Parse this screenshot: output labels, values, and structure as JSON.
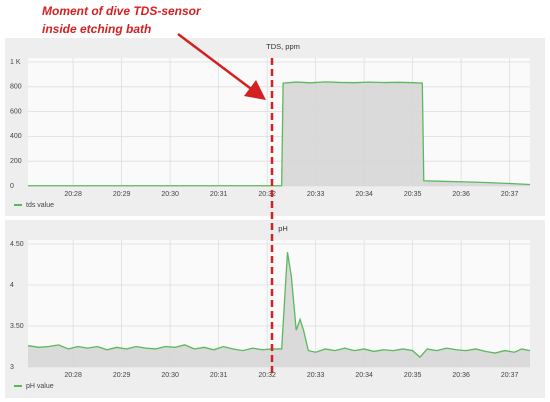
{
  "chart_data": [
    {
      "type": "line",
      "title": "TDS, ppm",
      "annotation": [
        "Moment of dive TDS-sensor",
        "inside etching bath"
      ],
      "series": [
        {
          "name": "tds value",
          "color": "#5cb85c",
          "x": [
            27.07,
            32.3,
            32.33,
            32.6,
            32.9,
            33.2,
            33.5,
            33.8,
            34.1,
            34.4,
            34.7,
            35.0,
            35.2,
            35.23,
            35.6,
            36.0,
            36.5,
            37.0,
            37.42
          ],
          "values": [
            2,
            2,
            830,
            838,
            832,
            840,
            835,
            833,
            838,
            834,
            836,
            833,
            830,
            42,
            38,
            34,
            28,
            20,
            12
          ]
        }
      ],
      "xlim": [
        27.07,
        37.42
      ],
      "xticks": [
        {
          "value": 28,
          "label": "20:28"
        },
        {
          "value": 29,
          "label": "20:29"
        },
        {
          "value": 30,
          "label": "20:30"
        },
        {
          "value": 31,
          "label": "20:31"
        },
        {
          "value": 32,
          "label": "20:32"
        },
        {
          "value": 33,
          "label": "20:33"
        },
        {
          "value": 34,
          "label": "20:34"
        },
        {
          "value": 35,
          "label": "20:35"
        },
        {
          "value": 36,
          "label": "20:36"
        },
        {
          "value": 37,
          "label": "20:37"
        }
      ],
      "ylim": [
        0,
        1000
      ],
      "yticks": [
        0,
        200,
        400,
        600,
        800,
        {
          "value": 1000,
          "label": "1 K"
        }
      ],
      "grid": true
    },
    {
      "type": "line",
      "title": "pH",
      "series": [
        {
          "name": "pH value",
          "color": "#5cb85c",
          "x": [
            27.07,
            27.3,
            27.5,
            27.7,
            27.9,
            28.1,
            28.3,
            28.5,
            28.7,
            28.9,
            29.1,
            29.3,
            29.5,
            29.7,
            29.9,
            30.1,
            30.3,
            30.5,
            30.7,
            30.9,
            31.1,
            31.3,
            31.5,
            31.7,
            31.9,
            32.1,
            32.3,
            32.42,
            32.5,
            32.6,
            32.68,
            32.75,
            32.85,
            33.0,
            33.2,
            33.4,
            33.6,
            33.8,
            34.0,
            34.2,
            34.4,
            34.6,
            34.8,
            35.0,
            35.15,
            35.3,
            35.5,
            35.7,
            35.9,
            36.1,
            36.3,
            36.5,
            36.7,
            36.9,
            37.1,
            37.25,
            37.42
          ],
          "values": [
            3.26,
            3.24,
            3.25,
            3.27,
            3.22,
            3.25,
            3.23,
            3.25,
            3.21,
            3.24,
            3.22,
            3.25,
            3.23,
            3.22,
            3.25,
            3.24,
            3.27,
            3.22,
            3.24,
            3.21,
            3.25,
            3.22,
            3.2,
            3.23,
            3.21,
            3.22,
            3.22,
            4.4,
            4.1,
            3.45,
            3.58,
            3.45,
            3.2,
            3.18,
            3.22,
            3.2,
            3.23,
            3.2,
            3.22,
            3.19,
            3.21,
            3.2,
            3.22,
            3.2,
            3.12,
            3.22,
            3.2,
            3.23,
            3.21,
            3.2,
            3.22,
            3.19,
            3.17,
            3.2,
            3.18,
            3.22,
            3.2
          ]
        }
      ],
      "xlim": [
        27.07,
        37.42
      ],
      "xticks": [
        {
          "value": 28,
          "label": "20:28"
        },
        {
          "value": 29,
          "label": "20:29"
        },
        {
          "value": 30,
          "label": "20:30"
        },
        {
          "value": 31,
          "label": "20:31"
        },
        {
          "value": 32,
          "label": "20:32"
        },
        {
          "value": 33,
          "label": "20:33"
        },
        {
          "value": 34,
          "label": "20:34"
        },
        {
          "value": 35,
          "label": "20:35"
        },
        {
          "value": 36,
          "label": "20:36"
        },
        {
          "value": 37,
          "label": "20:37"
        }
      ],
      "ylim": [
        3,
        4.5
      ],
      "yticks": [
        3,
        {
          "value": 3.5,
          "label": "3.50"
        },
        4,
        {
          "value": 4.5,
          "label": "4.50"
        }
      ],
      "grid": true
    }
  ]
}
